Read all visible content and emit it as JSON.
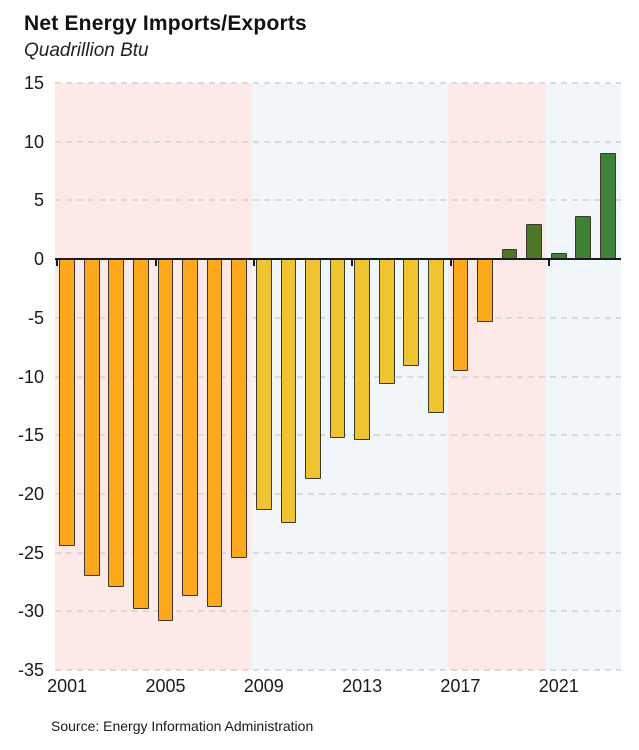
{
  "header": {
    "title": "Net Energy Imports/Exports",
    "subtitle": "Quadrillion Btu"
  },
  "footer": {
    "source": "Source: Energy Information Administration"
  },
  "chart_data": {
    "type": "bar",
    "title": "Net Energy Imports/Exports",
    "units_label": "Quadrillion Btu",
    "x": [
      2001,
      2002,
      2003,
      2004,
      2005,
      2006,
      2007,
      2008,
      2009,
      2010,
      2011,
      2012,
      2013,
      2014,
      2015,
      2016,
      2017,
      2018,
      2019,
      2020,
      2021,
      2022,
      2023
    ],
    "values": [
      -24.4,
      -27.0,
      -27.9,
      -29.8,
      -30.8,
      -28.7,
      -29.6,
      -25.5,
      -21.4,
      -22.5,
      -18.7,
      -15.2,
      -15.4,
      -10.6,
      -9.1,
      -13.1,
      -9.5,
      -5.4,
      0.9,
      3.0,
      0.5,
      3.7,
      9.0
    ],
    "bar_colors": [
      "#fba81c",
      "#fba81c",
      "#fba81c",
      "#fba81c",
      "#fba81c",
      "#fba81c",
      "#fba81c",
      "#fba81c",
      "#f0c331",
      "#f0c331",
      "#f0c331",
      "#f0c331",
      "#f0c331",
      "#f0c331",
      "#f0c331",
      "#f0c331",
      "#fba81c",
      "#fba81c",
      "#4e7626",
      "#4e7626",
      "#3f8136",
      "#3f8136",
      "#3f8136"
    ],
    "ylim": [
      -35,
      15
    ],
    "yticks": [
      15,
      10,
      5,
      0,
      -5,
      -10,
      -15,
      -20,
      -25,
      -30,
      -35
    ],
    "xtick_labels": [
      "2001",
      "2005",
      "2009",
      "2013",
      "2017",
      "2021"
    ],
    "grid": "horizontal-dashed",
    "legend": "none",
    "bands": [
      {
        "start_year": 2001,
        "end_year": 2008,
        "color": "#fce9e8",
        "name": "era-red-2001-2008"
      },
      {
        "start_year": 2009,
        "end_year": 2016,
        "color": "#f0f6f9",
        "name": "era-blue-2009-2016"
      },
      {
        "start_year": 2017,
        "end_year": 2020,
        "color": "#fce9e8",
        "name": "era-red-2017-2020"
      },
      {
        "start_year": 2021,
        "end_year": 2023,
        "color": "#f0f6f9",
        "name": "era-blue-2021-2023"
      }
    ],
    "colors": {
      "imports_red_era": "#fba81c",
      "imports_blue_era": "#f0c331",
      "exports_red_era": "#4e7626",
      "exports_blue_era": "#3f8136",
      "bar_border": "#3b382c",
      "zero_line": "#1a1a1a",
      "gridline": "#dadada",
      "band_red": "#fce9e8",
      "band_blue": "#f0f6f9",
      "background": "#ffffff",
      "text": "#1a1a1a"
    }
  }
}
